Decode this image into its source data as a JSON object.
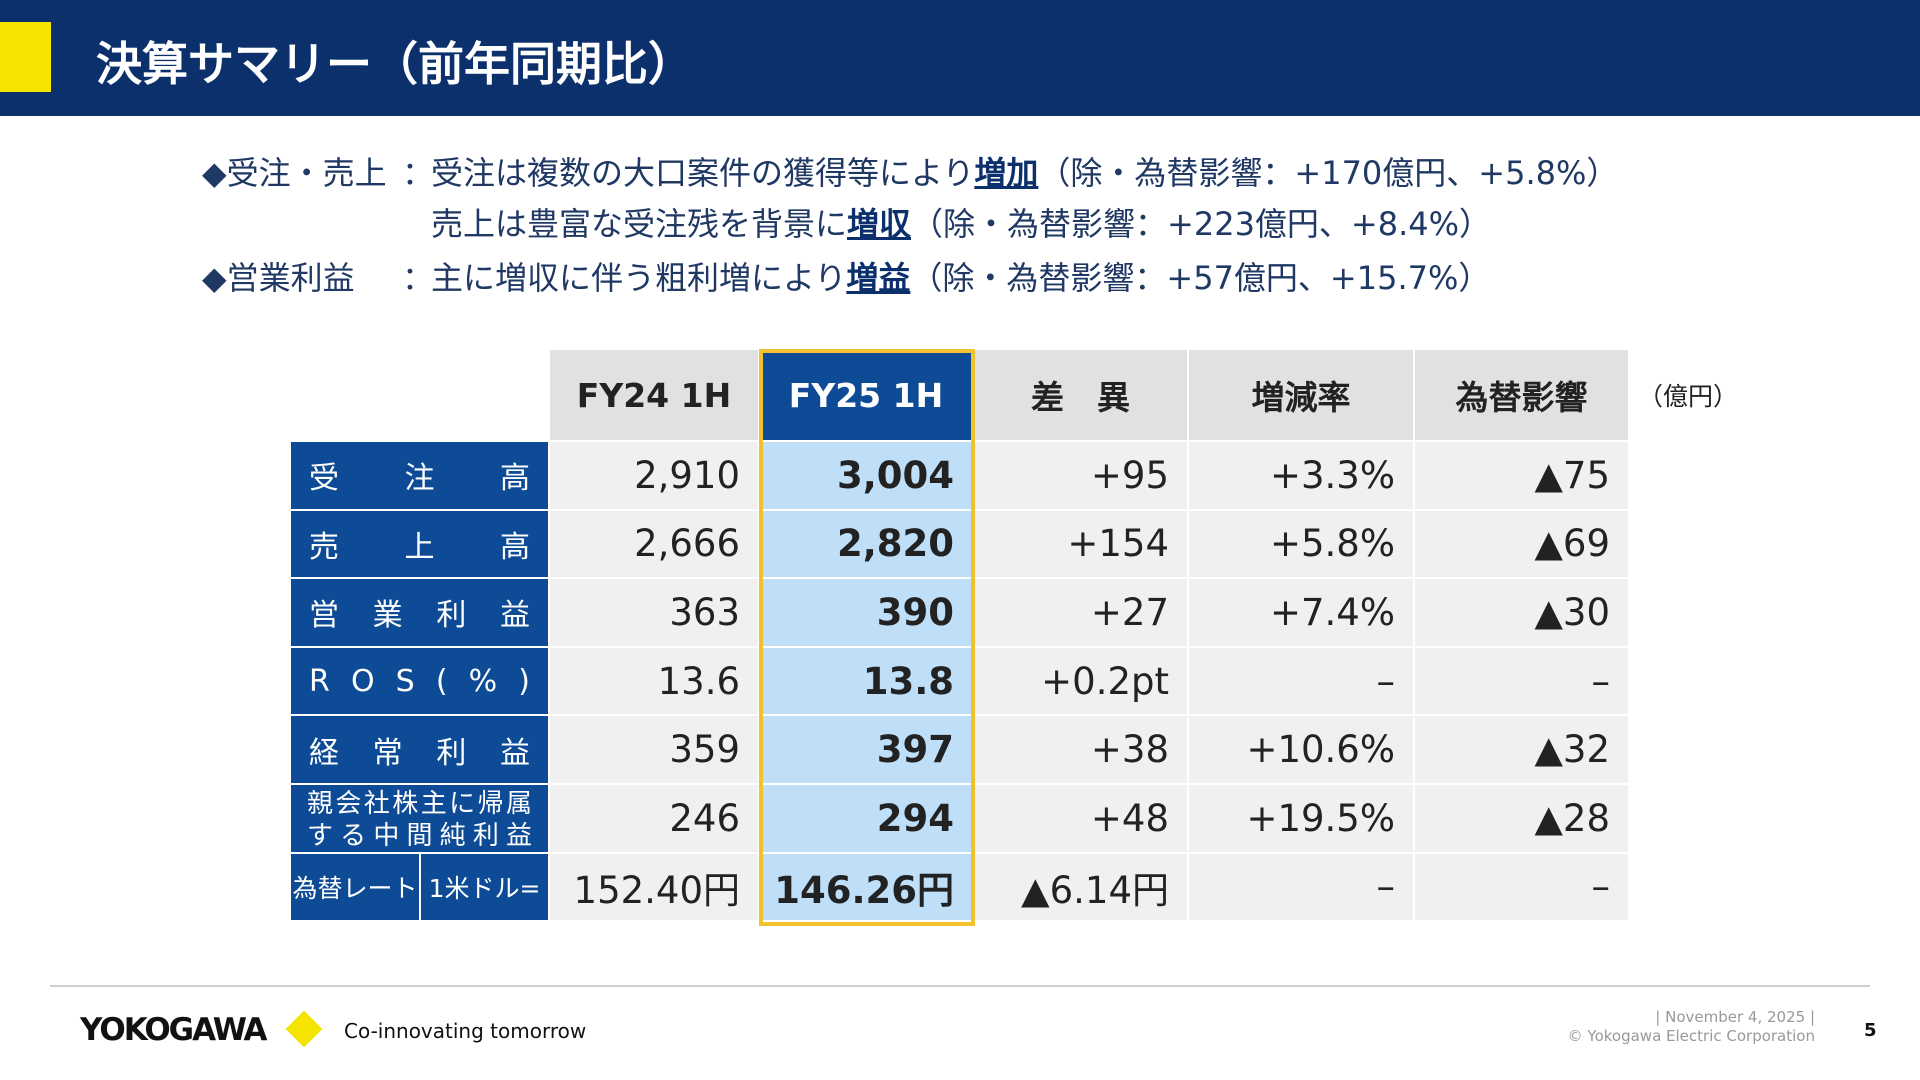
{
  "header": {
    "title": "決算サマリー（前年同期比）"
  },
  "summary": [
    {
      "label": "◆受注・売上",
      "sep": "：",
      "text": "受注は複数の大口案件の獲得等により",
      "emphasis": "増加",
      "note": "（除・為替影響：+170億円、+5.8%）"
    },
    {
      "text": "売上は豊富な受注残を背景に",
      "emphasis": "増収",
      "note": "（除・為替影響：+223億円、+8.4%）"
    },
    {
      "label": "◆営業利益",
      "sep": "：",
      "text": "主に増収に伴う粗利増により",
      "emphasis": "増益",
      "note": "（除・為替影響：+57億円、+15.7%）"
    }
  ],
  "table": {
    "unit": "（億円）",
    "headers": [
      "FY24 1H",
      "FY25 1H",
      "差　異",
      "増減率",
      "為替影響"
    ],
    "rows": [
      {
        "label": [
          "受注高"
        ],
        "cells": [
          "2,910",
          "3,004",
          "+95",
          "+3.3%",
          "▲75"
        ]
      },
      {
        "label": [
          "売上高"
        ],
        "cells": [
          "2,666",
          "2,820",
          "+154",
          "+5.8%",
          "▲69"
        ]
      },
      {
        "label": [
          "営業利益"
        ],
        "cells": [
          "363",
          "390",
          "+27",
          "+7.4%",
          "▲30"
        ]
      },
      {
        "label": [
          "ROS(%)"
        ],
        "cells": [
          "13.6",
          "13.8",
          "+0.2pt",
          "–",
          "–"
        ]
      },
      {
        "label": [
          "経常利益"
        ],
        "cells": [
          "359",
          "397",
          "+38",
          "+10.6%",
          "▲32"
        ]
      },
      {
        "label": [
          "親会社株主に帰属する中間純利益"
        ],
        "cells": [
          "246",
          "294",
          "+48",
          "+19.5%",
          "▲28"
        ]
      },
      {
        "label": [
          "為替レート",
          "1米ドル="
        ],
        "cells": [
          "152.40円",
          "146.26円",
          "▲6.14円",
          "–",
          "–"
        ]
      }
    ]
  },
  "footer": {
    "brand": "YOKOGAWA",
    "tagline": "Co-innovating tomorrow",
    "date": "| November 4, 2025 |",
    "copyright": "© Yokogawa Electric Corporation",
    "page": "5"
  }
}
